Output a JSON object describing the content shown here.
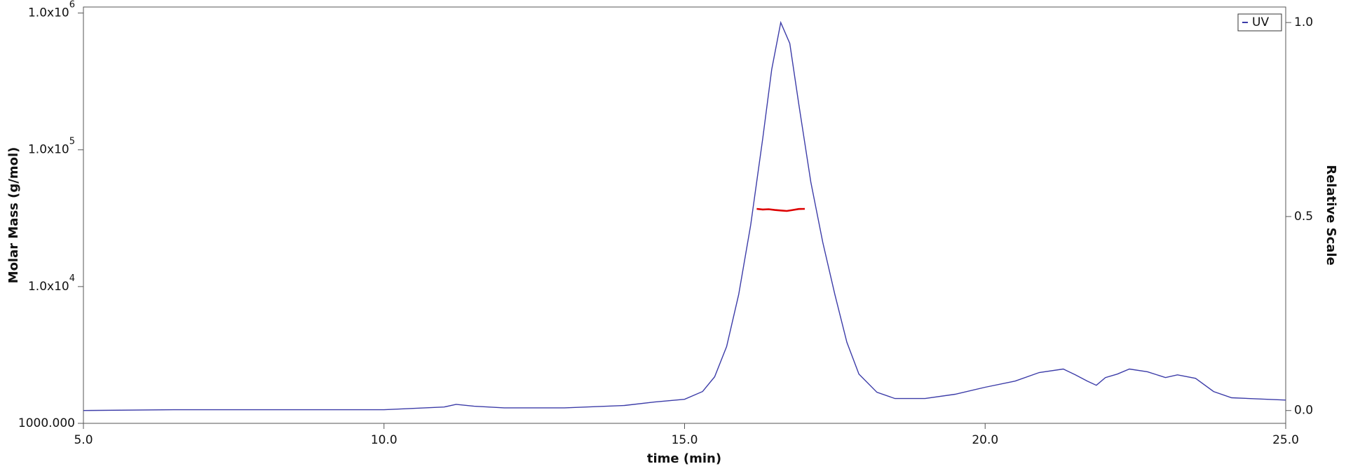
{
  "chart_data": {
    "type": "line",
    "xlabel": "time (min)",
    "ylabel": "Molar Mass (g/mol)",
    "y2label": "Relative Scale",
    "xlim": [
      5,
      25
    ],
    "xticks": [
      {
        "value": 5,
        "label": "5.0"
      },
      {
        "value": 10,
        "label": "10.0"
      },
      {
        "value": 15,
        "label": "15.0"
      },
      {
        "value": 20,
        "label": "20.0"
      },
      {
        "value": 25,
        "label": "25.0"
      }
    ],
    "y_scale": "log",
    "ylim": [
      1000,
      1107000
    ],
    "yticks": [
      {
        "value": 1000,
        "label": "1000.000"
      },
      {
        "value": 10000,
        "label": "1.0x10",
        "exponent": "4"
      },
      {
        "value": 100000,
        "label": "1.0x10",
        "exponent": "5"
      },
      {
        "value": 1000000,
        "label": "1.0x10",
        "exponent": "6"
      }
    ],
    "y2lim": [
      -0.033,
      1.04
    ],
    "y2ticks": [
      {
        "value": 0,
        "label": "0.0"
      },
      {
        "value": 0.5,
        "label": "0.5"
      },
      {
        "value": 1,
        "label": "1.0"
      }
    ],
    "legend": "upper right",
    "series": [
      {
        "name": "UV",
        "color": "#3c3ca8",
        "axis": "y2",
        "x": [
          5,
          6.5,
          8,
          10,
          11,
          11.2,
          11.5,
          12,
          13,
          14,
          14.5,
          15,
          15.3,
          15.5,
          15.7,
          15.9,
          16.1,
          16.3,
          16.45,
          16.6,
          16.75,
          16.9,
          17.1,
          17.3,
          17.5,
          17.7,
          17.9,
          18.2,
          18.5,
          19,
          19.5,
          20,
          20.5,
          20.9,
          21.3,
          21.5,
          21.7,
          21.85,
          22,
          22.2,
          22.4,
          22.7,
          23,
          23.2,
          23.5,
          23.8,
          24.1,
          25
        ],
        "values": [
          0.0,
          0.002,
          0.002,
          0.002,
          0.009,
          0.016,
          0.011,
          0.007,
          0.007,
          0.013,
          0.022,
          0.029,
          0.049,
          0.087,
          0.165,
          0.299,
          0.478,
          0.701,
          0.879,
          1.0,
          0.946,
          0.79,
          0.589,
          0.433,
          0.299,
          0.176,
          0.094,
          0.047,
          0.031,
          0.031,
          0.042,
          0.06,
          0.076,
          0.098,
          0.107,
          0.092,
          0.076,
          0.065,
          0.085,
          0.094,
          0.107,
          0.1,
          0.085,
          0.092,
          0.083,
          0.049,
          0.033,
          0.027
        ]
      },
      {
        "color": "#dd0000",
        "x": [
          16.2,
          16.3,
          16.4,
          16.5,
          16.6,
          16.7,
          16.8,
          16.9,
          17.0
        ],
        "values": [
          37000,
          36600,
          36800,
          36300,
          36000,
          35700,
          36300,
          36900,
          37000
        ]
      }
    ]
  }
}
